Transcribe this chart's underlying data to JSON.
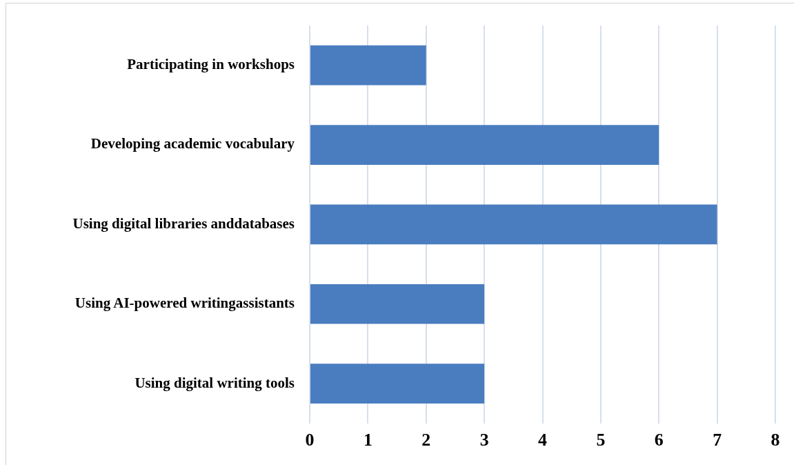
{
  "chart_data": {
    "type": "bar",
    "orientation": "horizontal",
    "categories": [
      "Participating in workshops",
      "Developing academic vocabulary",
      "Using digital libraries anddatabases",
      "Using AI-powered writingassistants",
      "Using digital writing tools"
    ],
    "values": [
      2,
      6,
      7,
      3,
      3
    ],
    "color": "#4a7dc0",
    "xlim": [
      0,
      8
    ],
    "xticks": [
      0,
      1,
      2,
      3,
      4,
      5,
      6,
      7,
      8
    ],
    "grid": "x",
    "legend": false
  }
}
